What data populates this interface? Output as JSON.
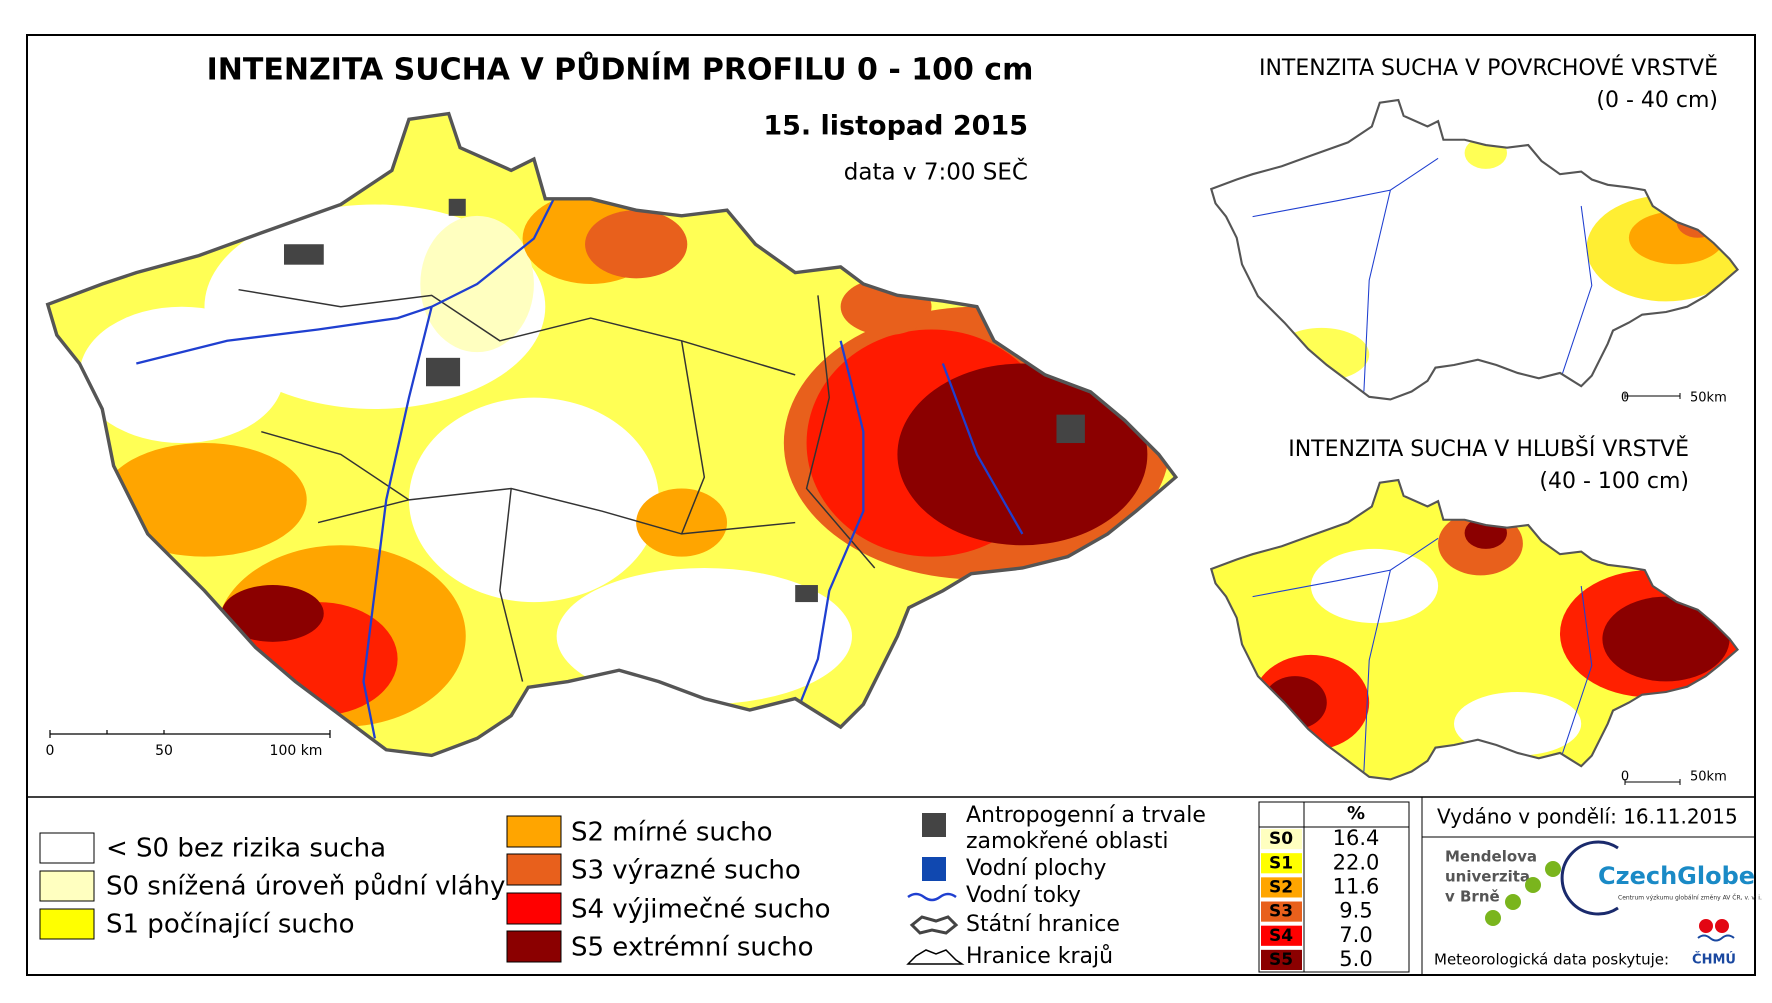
{
  "header": {
    "title": "INTENZITA SUCHA V PŮDNÍM PROFILU 0 - 100 cm",
    "date": "15. listopad 2015",
    "time_note": "data v 7:00 SEČ"
  },
  "scale_bar": {
    "labels": [
      "0",
      "50",
      "100 km"
    ]
  },
  "insets": [
    {
      "title": "INTENZITA SUCHA V POVRCHOVÉ VRSTVĚ",
      "depth": "(0 - 40 cm)",
      "scale_labels": [
        "0",
        "50km"
      ]
    },
    {
      "title": "INTENZITA SUCHA V HLUBŠÍ VRSTVĚ",
      "depth": "(40 - 100 cm)",
      "scale_labels": [
        "0",
        "50km"
      ]
    }
  ],
  "legend": {
    "classes": [
      "< S0 bez rizika sucha",
      "S0 snížená úroveň půdní vláhy",
      "S1 počínající sucho",
      "S2 mírné sucho",
      "S3 výrazné sucho",
      "S4 výjimečné sucho",
      "S5 extrémní sucho"
    ],
    "features": [
      [
        "Antropogenní a trvale",
        "zamokřené oblasti"
      ],
      [
        "Vodní plochy"
      ],
      [
        "Vodní toky"
      ],
      [
        "Státní hranice"
      ],
      [
        "Hranice krajů"
      ]
    ]
  },
  "table": {
    "header": "%",
    "rows": [
      [
        "S0",
        "16.4"
      ],
      [
        "S1",
        "22.0"
      ],
      [
        "S2",
        "11.6"
      ],
      [
        "S3",
        "9.5"
      ],
      [
        "S4",
        "7.0"
      ],
      [
        "S5",
        "5.0"
      ]
    ]
  },
  "issued": "Vydáno v pondělí: 16.11.2015",
  "logos": {
    "mendel": [
      "Mendelova",
      "univerzita",
      "v Brně"
    ],
    "czechglobe": "CzechGlobe",
    "czechglobe_sub": "Centrum výzkumu globální změny AV ČR, v. v. i.",
    "chmu": "ČHMÚ"
  },
  "credit": "Meteorologická data poskytuje:"
}
